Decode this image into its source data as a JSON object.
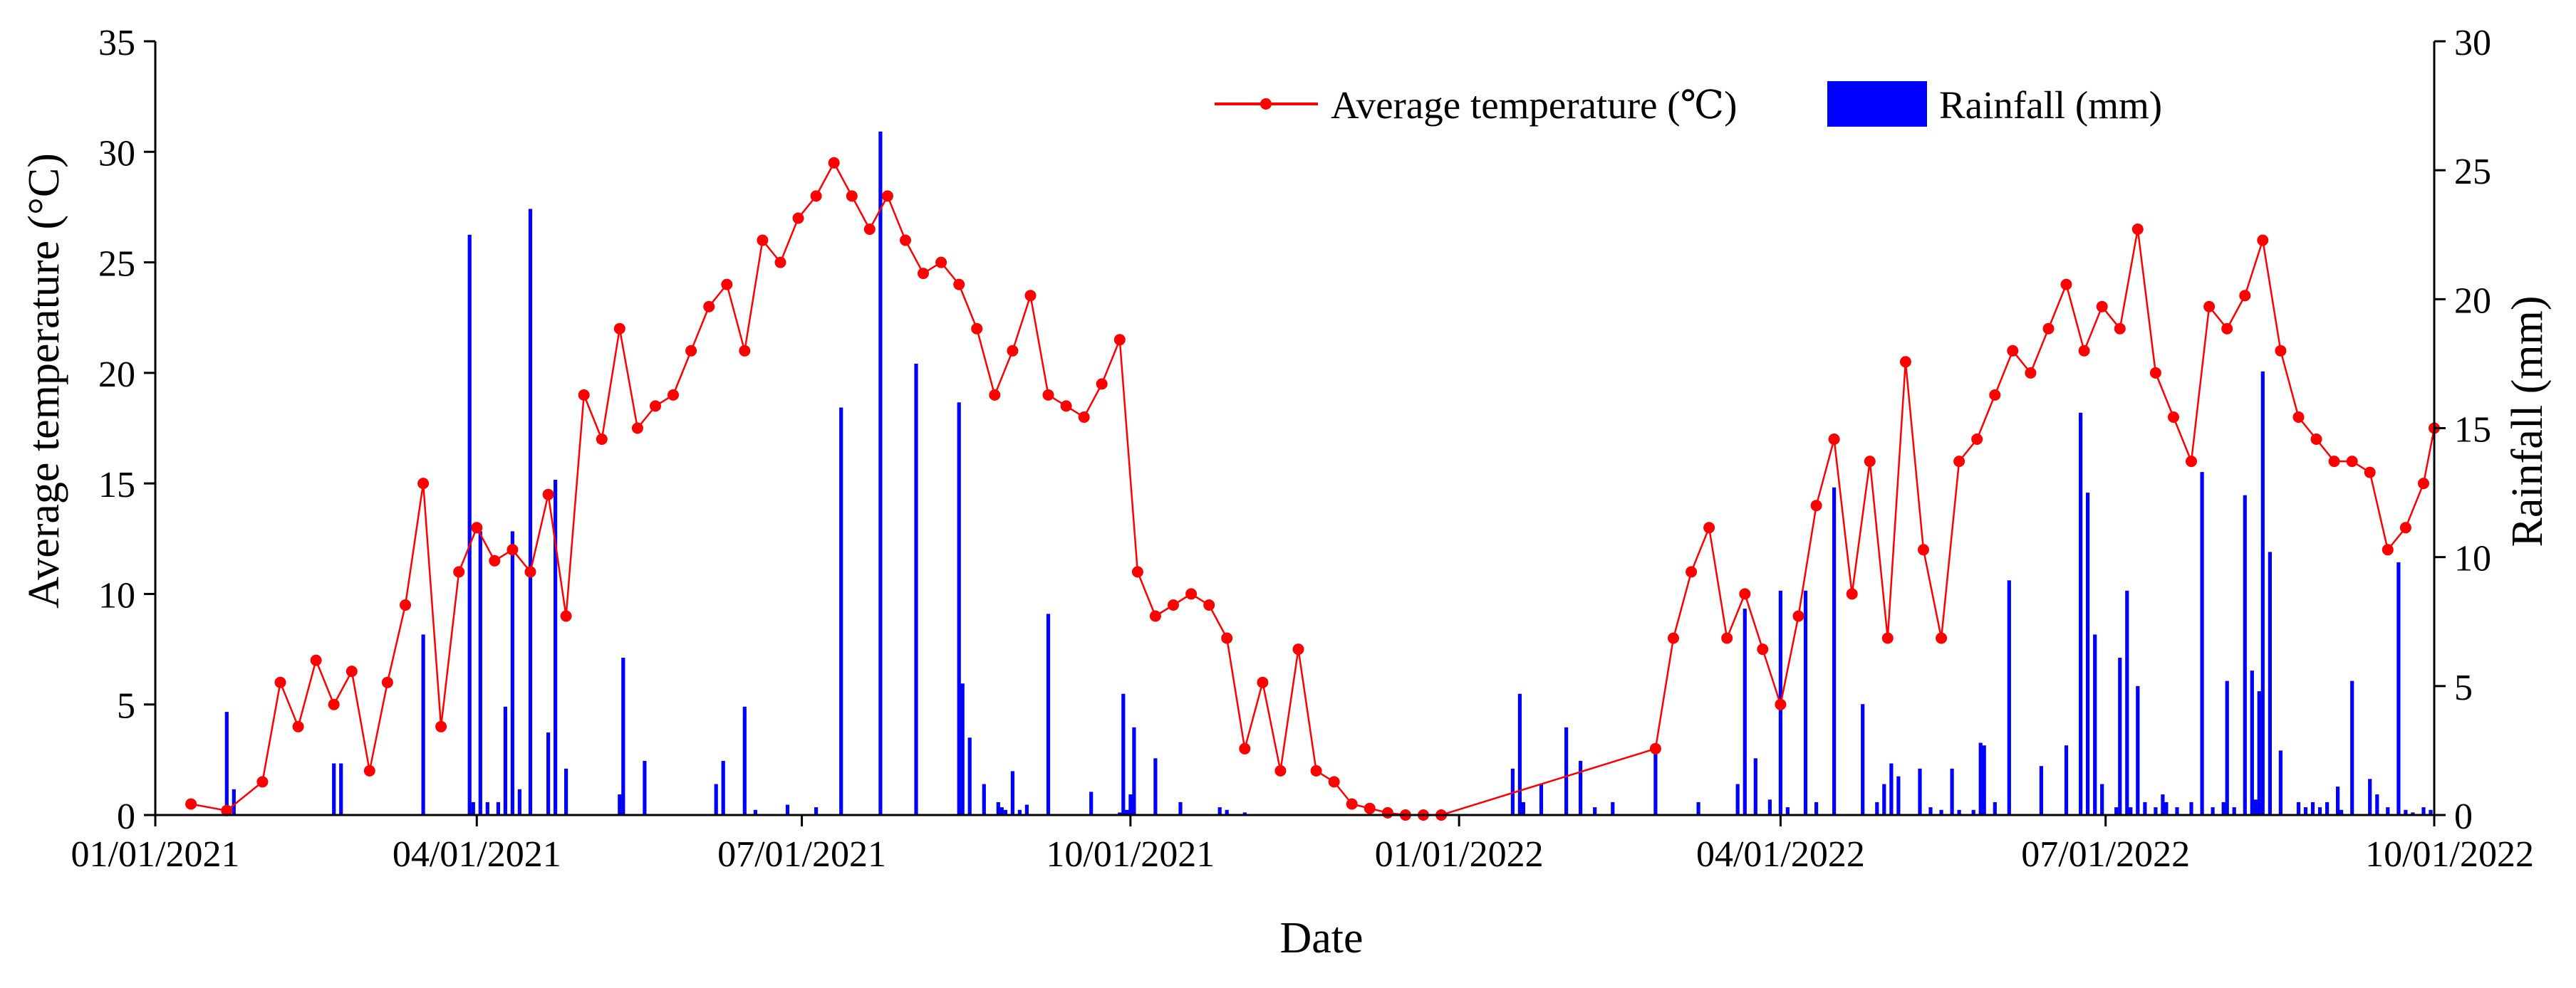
{
  "chart_data": {
    "type": "bar+line",
    "title": "",
    "xlabel": "Date",
    "ylabel_left": "Average temperature (°C)",
    "ylabel_right": "Rainfall (mm)",
    "x_ticks": [
      "01/01/2021",
      "04/01/2021",
      "07/01/2021",
      "10/01/2021",
      "01/01/2022",
      "04/01/2022",
      "07/01/2022",
      "10/01/2022"
    ],
    "x_tick_days": [
      0,
      90,
      181,
      273,
      365,
      455,
      546,
      638
    ],
    "xlim_days": [
      0,
      638
    ],
    "ylim_left": [
      0,
      35
    ],
    "yticks_left": [
      "0",
      "5",
      "10",
      "15",
      "20",
      "25",
      "30",
      "35"
    ],
    "ylim_right": [
      0,
      30
    ],
    "yticks_right": [
      "0",
      "5",
      "10",
      "15",
      "20",
      "25",
      "30"
    ],
    "legend": {
      "position": "top-right",
      "temperature_label": "Average temperature (℃)",
      "rainfall_label": "Rainfall (mm)"
    },
    "colors": {
      "temperature": "#ff0000",
      "rainfall": "#0000ff",
      "axis": "#000000"
    },
    "series": [
      {
        "name": "Average temperature (℃)",
        "kind": "line-markers",
        "axis": "left",
        "x_days": [
          10,
          20,
          30,
          35,
          40,
          45,
          50,
          55,
          60,
          65,
          70,
          75,
          80,
          85,
          90,
          95,
          100,
          105,
          110,
          115,
          120,
          125,
          130,
          135,
          140,
          145,
          150,
          155,
          160,
          165,
          170,
          175,
          180,
          185,
          190,
          195,
          200,
          205,
          210,
          215,
          220,
          225,
          230,
          235,
          240,
          245,
          250,
          255,
          260,
          265,
          270,
          275,
          280,
          285,
          290,
          295,
          300,
          305,
          310,
          315,
          320,
          325,
          330,
          335,
          340,
          345,
          350,
          355,
          360,
          420,
          425,
          430,
          435,
          440,
          445,
          450,
          455,
          460,
          465,
          470,
          475,
          480,
          485,
          490,
          495,
          500,
          505,
          510,
          515,
          520,
          525,
          530,
          535,
          540,
          545,
          550,
          555,
          560,
          565,
          570,
          575,
          580,
          585,
          590,
          595,
          600,
          605,
          610,
          615,
          620,
          625,
          630,
          635,
          638
        ],
        "values": [
          0.5,
          0.2,
          1.5,
          6,
          4,
          7,
          5,
          6.5,
          2,
          6,
          9.5,
          15,
          4,
          11,
          13,
          11.5,
          12,
          11,
          14.5,
          9,
          19,
          17,
          22,
          17.5,
          18.5,
          19,
          21,
          23,
          24,
          21,
          26,
          25,
          27,
          28,
          29.5,
          28,
          26.5,
          28,
          26,
          24.5,
          25,
          24,
          22,
          19,
          21,
          23.5,
          19,
          18.5,
          18,
          19.5,
          21.5,
          11,
          9,
          9.5,
          10,
          9.5,
          8,
          3,
          6,
          2,
          7.5,
          2,
          1.5,
          0.5,
          0.3,
          0.1,
          0,
          0,
          0,
          3,
          8,
          11,
          13,
          8,
          10,
          7.5,
          5,
          9,
          14,
          17,
          10,
          16,
          8,
          20.5,
          12,
          8,
          16,
          17,
          19,
          21,
          20,
          22,
          24,
          21,
          23,
          22,
          26.5,
          20,
          18,
          16,
          23,
          22,
          23.5,
          26,
          21,
          18,
          17,
          16,
          16,
          15.5,
          12,
          13,
          15,
          17.5
        ]
      },
      {
        "name": "Rainfall (mm)",
        "kind": "bar",
        "axis": "right",
        "x_days": [
          20,
          22,
          50,
          52,
          75,
          88,
          89,
          91,
          93,
          96,
          98,
          100,
          102,
          105,
          110,
          112,
          115,
          130,
          131,
          137,
          157,
          159,
          165,
          168,
          177,
          185,
          192,
          203,
          213,
          225,
          226,
          228,
          232,
          236,
          237,
          238,
          240,
          242,
          244,
          250,
          262,
          270,
          271,
          272,
          273,
          274,
          280,
          287,
          298,
          300,
          305,
          380,
          382,
          383,
          388,
          395,
          399,
          403,
          408,
          420,
          432,
          443,
          445,
          448,
          452,
          455,
          457,
          462,
          465,
          470,
          478,
          482,
          484,
          486,
          488,
          494,
          497,
          500,
          503,
          505,
          509,
          511,
          512,
          515,
          519,
          528,
          535,
          539,
          541,
          543,
          545,
          549,
          550,
          552,
          553,
          555,
          557,
          560,
          562,
          563,
          566,
          570,
          573,
          576,
          579,
          580,
          582,
          585,
          587,
          588,
          589,
          590,
          592,
          595,
          600,
          602,
          604,
          606,
          608,
          611,
          612,
          615,
          620,
          622,
          625,
          628,
          630,
          632,
          635,
          637
        ],
        "values": [
          4,
          1,
          2,
          2,
          7,
          22.5,
          0.5,
          11,
          0.5,
          0.5,
          4.2,
          11,
          1,
          23.5,
          3.2,
          13,
          1.8,
          0.8,
          6.1,
          2.1,
          1.2,
          2.1,
          4.2,
          0.2,
          0.4,
          0.3,
          15.8,
          26.5,
          17.5,
          16,
          5.1,
          3,
          1.2,
          0.5,
          0.3,
          0.2,
          1.7,
          0.2,
          0.4,
          7.8,
          0.9,
          0.1,
          4.7,
          0.2,
          0.8,
          3.4,
          2.2,
          0.5,
          0.3,
          0.2,
          0.1,
          1.8,
          4.7,
          0.5,
          1.2,
          3.4,
          2.1,
          0.3,
          0.5,
          2.7,
          0.5,
          1.2,
          8,
          2.2,
          0.6,
          8.7,
          0.3,
          8.7,
          0.5,
          12.7,
          4.3,
          0.5,
          1.2,
          2,
          1.5,
          1.8,
          0.3,
          0.2,
          1.8,
          0.2,
          0.2,
          2.8,
          2.7,
          0.5,
          9.1,
          1.9,
          2.7,
          15.6,
          12.5,
          7,
          1.2,
          0.3,
          6.1,
          8.7,
          0.3,
          5,
          0.5,
          0.3,
          0.8,
          0.5,
          0.3,
          0.5,
          13.3,
          0.3,
          0.5,
          5.2,
          0.3,
          12.4,
          5.6,
          0.6,
          4.8,
          17.2,
          10.2,
          2.5,
          0.5,
          0.3,
          0.5,
          0.3,
          0.5,
          1.1,
          0.2,
          5.2,
          1.4,
          0.8,
          0.3,
          9.8,
          0.2,
          0.1,
          0.3,
          0.2
        ]
      }
    ]
  }
}
